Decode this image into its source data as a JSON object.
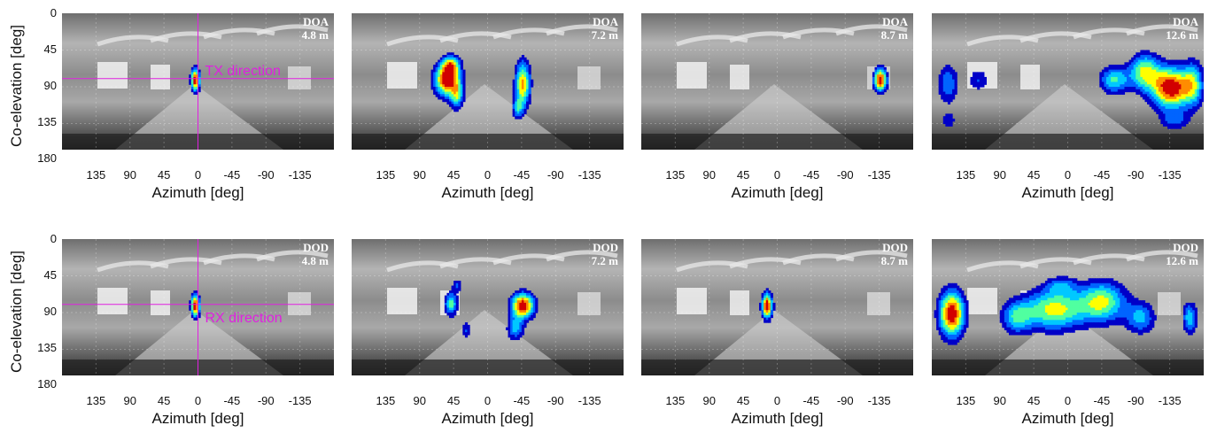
{
  "figure": {
    "ylabel": "Co-elevation [deg]",
    "xlabel": "Azimuth [deg]",
    "x_ticks": [
      "135",
      "90",
      "45",
      "0",
      "-45",
      "-90",
      "-135"
    ],
    "y_ticks": [
      "0",
      "45",
      "90",
      "135",
      "180"
    ]
  },
  "colors": {
    "annotation": "#e020e0",
    "colormap": [
      "#0000c8",
      "#0064ff",
      "#00c8ff",
      "#50ffa0",
      "#ffff00",
      "#ff8c00",
      "#d20000"
    ]
  },
  "chart_data": [
    {
      "type": "heatmap",
      "row": 0,
      "col": 0,
      "label": "DOA",
      "distance": "4.8 m",
      "xlim": [
        180,
        -180
      ],
      "ylim": [
        0,
        180
      ],
      "annotation": {
        "text": "TX direction",
        "az": 0,
        "el": 80
      },
      "hotspots": [
        {
          "az": 5,
          "el": 80,
          "saz": 4,
          "sel": 10,
          "w": 1
        }
      ]
    },
    {
      "type": "heatmap",
      "row": 0,
      "col": 1,
      "label": "DOA",
      "distance": "7.2 m",
      "xlim": [
        180,
        -180
      ],
      "ylim": [
        0,
        180
      ],
      "hotspots": [
        {
          "az": 55,
          "el": 80,
          "saz": 12,
          "sel": 14,
          "w": 1
        },
        {
          "az": 50,
          "el": 62,
          "saz": 8,
          "sel": 8,
          "w": 0.6
        },
        {
          "az": 42,
          "el": 100,
          "saz": 6,
          "sel": 12,
          "w": 0.5
        },
        {
          "az": -45,
          "el": 85,
          "saz": 7,
          "sel": 20,
          "w": 0.8
        },
        {
          "az": -38,
          "el": 115,
          "saz": 5,
          "sel": 9,
          "w": 0.4
        }
      ]
    },
    {
      "type": "heatmap",
      "row": 0,
      "col": 2,
      "label": "DOA",
      "distance": "8.7 m",
      "xlim": [
        180,
        -180
      ],
      "ylim": [
        0,
        180
      ],
      "hotspots": [
        {
          "az": -135,
          "el": 80,
          "saz": 6,
          "sel": 10,
          "w": 1
        }
      ]
    },
    {
      "type": "heatmap",
      "row": 0,
      "col": 3,
      "label": "DOA",
      "distance": "12.6 m",
      "xlim": [
        180,
        -180
      ],
      "ylim": [
        0,
        180
      ],
      "hotspots": [
        {
          "az": -135,
          "el": 90,
          "saz": 18,
          "sel": 18,
          "w": 1
        },
        {
          "az": -100,
          "el": 70,
          "saz": 14,
          "sel": 16,
          "w": 0.65
        },
        {
          "az": -60,
          "el": 80,
          "saz": 14,
          "sel": 12,
          "w": 0.55
        },
        {
          "az": -165,
          "el": 85,
          "saz": 10,
          "sel": 20,
          "w": 0.5
        },
        {
          "az": 160,
          "el": 85,
          "saz": 10,
          "sel": 18,
          "w": 0.4
        },
        {
          "az": 120,
          "el": 80,
          "saz": 10,
          "sel": 10,
          "w": 0.3
        },
        {
          "az": 160,
          "el": 130,
          "saz": 8,
          "sel": 8,
          "w": 0.25
        },
        {
          "az": -140,
          "el": 130,
          "saz": 14,
          "sel": 8,
          "w": 0.3
        }
      ]
    },
    {
      "type": "heatmap",
      "row": 1,
      "col": 0,
      "label": "DOD",
      "distance": "4.8 m",
      "xlim": [
        180,
        -180
      ],
      "ylim": [
        0,
        180
      ],
      "annotation": {
        "text": "RX direction",
        "az": 0,
        "el": 80
      },
      "hotspots": [
        {
          "az": 5,
          "el": 80,
          "saz": 4,
          "sel": 10,
          "w": 1
        }
      ]
    },
    {
      "type": "heatmap",
      "row": 1,
      "col": 1,
      "label": "DOD",
      "distance": "7.2 m",
      "xlim": [
        180,
        -180
      ],
      "ylim": [
        0,
        180
      ],
      "hotspots": [
        {
          "az": -45,
          "el": 80,
          "saz": 11,
          "sel": 11,
          "w": 1
        },
        {
          "az": 50,
          "el": 78,
          "saz": 6,
          "sel": 10,
          "w": 0.6
        },
        {
          "az": 42,
          "el": 55,
          "saz": 5,
          "sel": 6,
          "w": 0.3
        },
        {
          "az": -35,
          "el": 108,
          "saz": 8,
          "sel": 10,
          "w": 0.45
        },
        {
          "az": 30,
          "el": 110,
          "saz": 5,
          "sel": 8,
          "w": 0.3
        }
      ]
    },
    {
      "type": "heatmap",
      "row": 1,
      "col": 2,
      "label": "DOD",
      "distance": "8.7 m",
      "xlim": [
        180,
        -180
      ],
      "ylim": [
        0,
        180
      ],
      "hotspots": [
        {
          "az": 15,
          "el": 80,
          "saz": 5,
          "sel": 11,
          "w": 1
        }
      ]
    },
    {
      "type": "heatmap",
      "row": 1,
      "col": 3,
      "label": "DOD",
      "distance": "12.6 m",
      "xlim": [
        180,
        -180
      ],
      "ylim": [
        0,
        180
      ],
      "hotspots": [
        {
          "az": 155,
          "el": 90,
          "saz": 12,
          "sel": 20,
          "w": 1
        },
        {
          "az": 20,
          "el": 85,
          "saz": 30,
          "sel": 18,
          "w": 0.7
        },
        {
          "az": -45,
          "el": 75,
          "saz": 22,
          "sel": 18,
          "w": 0.65
        },
        {
          "az": -95,
          "el": 95,
          "saz": 14,
          "sel": 14,
          "w": 0.45
        },
        {
          "az": 70,
          "el": 95,
          "saz": 14,
          "sel": 14,
          "w": 0.45
        },
        {
          "az": -160,
          "el": 95,
          "saz": 7,
          "sel": 14,
          "w": 0.5
        },
        {
          "az": 10,
          "el": 55,
          "saz": 14,
          "sel": 8,
          "w": 0.3
        }
      ]
    }
  ]
}
